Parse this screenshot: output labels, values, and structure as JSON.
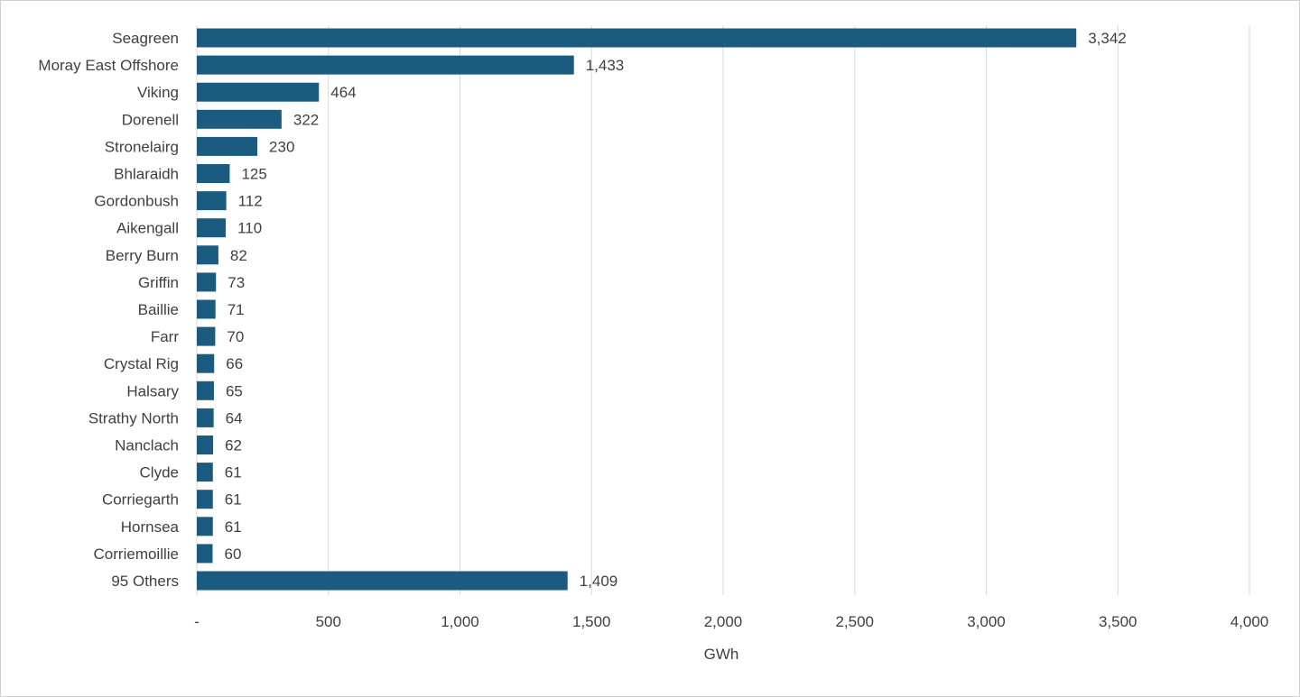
{
  "chart_data": {
    "type": "bar",
    "orientation": "horizontal",
    "categories": [
      "Seagreen",
      "Moray East Offshore",
      "Viking",
      "Dorenell",
      "Stronelairg",
      "Bhlaraidh",
      "Gordonbush",
      "Aikengall",
      "Berry Burn",
      "Griffin",
      "Baillie",
      "Farr",
      "Crystal Rig",
      "Halsary",
      "Strathy North",
      "Nanclach",
      "Clyde",
      "Corriegarth",
      "Hornsea",
      "Corriemoillie",
      "95 Others"
    ],
    "values": [
      3342,
      1433,
      464,
      322,
      230,
      125,
      112,
      110,
      82,
      73,
      71,
      70,
      66,
      65,
      64,
      62,
      61,
      61,
      61,
      60,
      1409
    ],
    "data_labels": [
      "3,342",
      "1,433",
      "464",
      "322",
      "230",
      "125",
      "112",
      "110",
      "82",
      "73",
      "71",
      "70",
      "66",
      "65",
      "64",
      "62",
      "61",
      "61",
      "61",
      "60",
      "1,409"
    ],
    "xlabel": "GWh",
    "xlim": [
      0,
      4000
    ],
    "xticks": [
      0,
      500,
      1000,
      1500,
      2000,
      2500,
      3000,
      3500,
      4000
    ],
    "xtick_labels": [
      "-",
      "500",
      "1,000",
      "1,500",
      "2,000",
      "2,500",
      "3,000",
      "3,500",
      "4,000"
    ],
    "grid": "vertical",
    "colors": {
      "bar": "#1b5b80",
      "grid": "#d9d9d9"
    }
  }
}
